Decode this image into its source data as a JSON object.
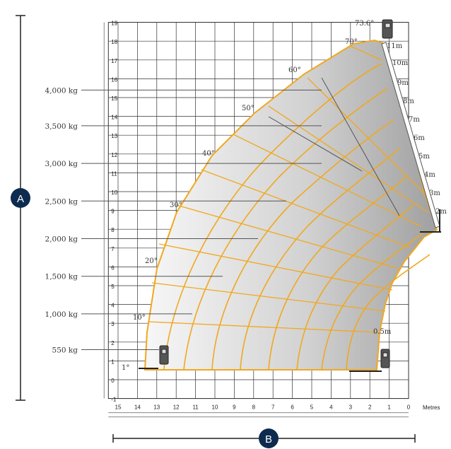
{
  "chart_data": {
    "type": "load-chart",
    "x_unit": "Metres",
    "x_ticks": [
      15,
      14,
      13,
      12,
      11,
      10,
      9,
      8,
      7,
      6,
      5,
      4,
      3,
      2,
      1,
      0
    ],
    "y_ticks": [
      -1,
      0,
      1,
      2,
      3,
      4,
      5,
      6,
      7,
      8,
      9,
      10,
      11,
      12,
      13,
      14,
      15,
      16,
      17,
      18,
      19
    ],
    "xlim": [
      0,
      15
    ],
    "ylim": [
      -1,
      19
    ],
    "load_zones": [
      {
        "label": "4,000 kg",
        "height": 15.4
      },
      {
        "label": "3,500 kg",
        "height": 13.5
      },
      {
        "label": "3,000 kg",
        "height": 11.5
      },
      {
        "label": "2,500 kg",
        "height": 9.5
      },
      {
        "label": "2,000 kg",
        "height": 7.5
      },
      {
        "label": "1,500 kg",
        "height": 5.5
      },
      {
        "label": "1,000 kg",
        "height": 3.5
      },
      {
        "label": "550 kg",
        "height": 1.6
      }
    ],
    "boom_angles": [
      {
        "label": "1°"
      },
      {
        "label": "10°"
      },
      {
        "label": "20°"
      },
      {
        "label": "30°"
      },
      {
        "label": "40°"
      },
      {
        "label": "50°"
      },
      {
        "label": "60°"
      },
      {
        "label": "70°"
      },
      {
        "label": "73.6°"
      }
    ],
    "extensions": [
      "11m",
      "10m",
      "9m",
      "8m",
      "7m",
      "6m",
      "5m",
      "4m",
      "3m",
      "2m",
      "0.5m"
    ],
    "colors": {
      "arc": "#f0a820",
      "zone_light": "#efefef",
      "zone_dark": "#a8a8a8",
      "grid": "#333333"
    }
  },
  "badges": {
    "a": "A",
    "b": "B"
  }
}
